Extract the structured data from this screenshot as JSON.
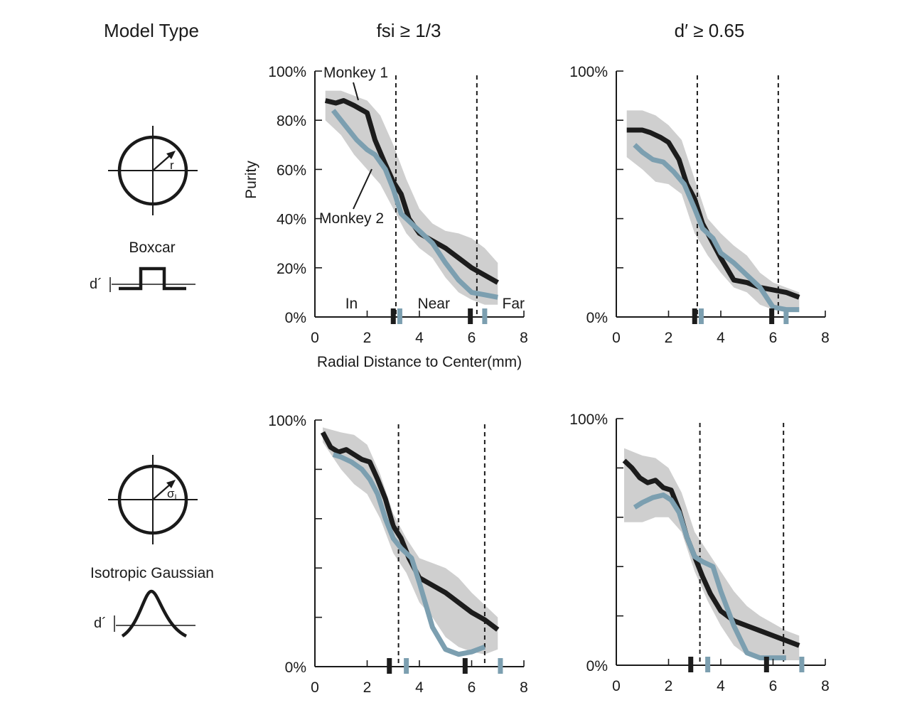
{
  "headers": {
    "model_type": "Model Type",
    "col1": "fsi ≥ 1/3",
    "col2": "d′ ≥ 0.65"
  },
  "models": {
    "boxcar": {
      "label": "Boxcar",
      "radius_symbol": "r",
      "dprime": "d´"
    },
    "gaussian": {
      "label": "Isotropic Gaussian",
      "radius_symbol": "σ",
      "radius_subscript": "I",
      "dprime": "d´"
    }
  },
  "colors": {
    "monkey1": "#1c1c1c",
    "monkey2": "#7c9fb0",
    "band": "#cfcfcf",
    "axis": "#1a1a1a"
  },
  "chart_data": [
    {
      "type": "line",
      "title": "",
      "ylabel": "Purity",
      "xlabel": "Radial Distance to Center(mm)",
      "xlim": [
        0,
        8
      ],
      "ylim": [
        0,
        100
      ],
      "xticks": [
        "0",
        "2",
        "4",
        "6",
        "8"
      ],
      "yticks": [
        "0%",
        "20%",
        "40%",
        "60%",
        "80%",
        "100%"
      ],
      "region_labels": [
        "In",
        "Near",
        "Far"
      ],
      "dashed_lines": [
        3.1,
        6.2
      ],
      "tick_marks": {
        "monkey1": [
          3.0,
          5.95
        ],
        "monkey2": [
          3.25,
          6.5
        ]
      },
      "series": [
        {
          "name": "Monkey 1",
          "x": [
            0.4,
            0.8,
            1.1,
            1.5,
            2.0,
            2.3,
            2.7,
            3.0,
            3.3,
            3.6,
            4.0,
            4.5,
            5.0,
            5.5,
            6.0,
            6.5,
            7.0
          ],
          "y": [
            88,
            87,
            88,
            86,
            83,
            72,
            62,
            55,
            50,
            40,
            34,
            31,
            28,
            24,
            20,
            17,
            14
          ]
        },
        {
          "name": "Monkey 2",
          "x": [
            0.7,
            1.0,
            1.3,
            1.6,
            2.0,
            2.3,
            2.7,
            3.0,
            3.3,
            3.6,
            4.0,
            4.5,
            5.0,
            5.5,
            6.0,
            6.5,
            7.0
          ],
          "y": [
            84,
            80,
            76,
            72,
            68,
            66,
            60,
            52,
            42,
            39,
            35,
            30,
            22,
            15,
            10,
            9,
            8
          ]
        }
      ],
      "band": {
        "x": [
          0.4,
          1.0,
          1.5,
          2.0,
          2.5,
          3.0,
          3.5,
          4.0,
          4.5,
          5.0,
          5.5,
          6.0,
          6.5,
          7.0
        ],
        "upper": [
          92,
          92,
          90,
          88,
          82,
          70,
          56,
          44,
          38,
          35,
          34,
          32,
          28,
          22
        ],
        "lower": [
          80,
          74,
          66,
          60,
          54,
          44,
          34,
          28,
          24,
          16,
          10,
          7,
          5,
          5
        ]
      },
      "annotations": [
        {
          "text": "Monkey 1",
          "series": "Monkey 1"
        },
        {
          "text": "Monkey 2",
          "series": "Monkey 2"
        }
      ]
    },
    {
      "type": "line",
      "title": "",
      "xlim": [
        0,
        8
      ],
      "ylim": [
        0,
        100
      ],
      "xticks": [
        "0",
        "2",
        "4",
        "6",
        "8"
      ],
      "yticks": [
        "0%",
        "100%"
      ],
      "dashed_lines": [
        3.1,
        6.2
      ],
      "tick_marks": {
        "monkey1": [
          3.0,
          5.95
        ],
        "monkey2": [
          3.25,
          6.5
        ]
      },
      "series": [
        {
          "name": "Monkey 1",
          "x": [
            0.4,
            0.8,
            1.0,
            1.3,
            1.7,
            2.0,
            2.4,
            2.7,
            3.0,
            3.3,
            3.7,
            4.0,
            4.5,
            5.0,
            5.5,
            6.0,
            6.5,
            7.0
          ],
          "y": [
            76,
            76,
            76,
            75,
            73,
            71,
            64,
            54,
            48,
            38,
            30,
            24,
            15,
            14,
            12,
            11,
            10,
            8
          ]
        },
        {
          "name": "Monkey 2",
          "x": [
            0.7,
            1.0,
            1.4,
            1.8,
            2.2,
            2.6,
            3.0,
            3.3,
            3.7,
            4.0,
            4.5,
            5.0,
            5.5,
            6.0,
            6.5,
            7.0
          ],
          "y": [
            70,
            67,
            64,
            63,
            59,
            54,
            44,
            36,
            32,
            26,
            22,
            17,
            12,
            4,
            3,
            3
          ]
        }
      ],
      "band": {
        "x": [
          0.4,
          1.0,
          1.5,
          2.0,
          2.5,
          3.0,
          3.5,
          4.0,
          4.5,
          5.0,
          5.5,
          6.0,
          6.5,
          7.0
        ],
        "upper": [
          84,
          84,
          82,
          78,
          72,
          56,
          40,
          34,
          29,
          25,
          18,
          14,
          12,
          10
        ],
        "lower": [
          65,
          60,
          55,
          54,
          50,
          34,
          25,
          18,
          12,
          10,
          5,
          3,
          2,
          2
        ]
      }
    },
    {
      "type": "line",
      "title": "",
      "xlim": [
        0,
        8
      ],
      "ylim": [
        0,
        100
      ],
      "xticks": [
        "0",
        "2",
        "4",
        "6",
        "8"
      ],
      "yticks": [
        "0%",
        "100%"
      ],
      "dashed_lines": [
        3.2,
        6.5
      ],
      "tick_marks": {
        "monkey1": [
          2.85,
          5.75
        ],
        "monkey2": [
          3.5,
          7.1
        ]
      },
      "series": [
        {
          "name": "Monkey 1",
          "x": [
            0.3,
            0.6,
            0.9,
            1.2,
            1.5,
            1.8,
            2.1,
            2.4,
            2.7,
            3.0,
            3.3,
            3.6,
            4.0,
            4.5,
            5.0,
            5.5,
            6.0,
            6.5,
            7.0
          ],
          "y": [
            95,
            89,
            87,
            88,
            86,
            84,
            83,
            76,
            68,
            57,
            52,
            44,
            36,
            33,
            30,
            26,
            22,
            19,
            15
          ]
        },
        {
          "name": "Monkey 2",
          "x": [
            0.7,
            1.0,
            1.4,
            1.8,
            2.1,
            2.4,
            2.7,
            3.0,
            3.3,
            3.7,
            4.0,
            4.5,
            5.0,
            5.5,
            6.0,
            6.5
          ],
          "y": [
            86,
            85,
            83,
            80,
            76,
            70,
            60,
            52,
            48,
            44,
            34,
            16,
            7,
            5,
            6,
            8
          ]
        }
      ],
      "band": {
        "x": [
          0.3,
          1.0,
          1.5,
          2.0,
          2.5,
          3.0,
          3.5,
          4.0,
          4.5,
          5.0,
          5.5,
          6.0,
          6.5,
          7.0
        ],
        "upper": [
          97,
          95,
          94,
          90,
          78,
          62,
          52,
          44,
          42,
          40,
          36,
          30,
          25,
          20
        ],
        "lower": [
          91,
          80,
          74,
          70,
          60,
          46,
          38,
          26,
          20,
          12,
          8,
          6,
          5,
          7
        ]
      }
    },
    {
      "type": "line",
      "title": "",
      "xlim": [
        0,
        8
      ],
      "ylim": [
        0,
        100
      ],
      "xticks": [
        "0",
        "2",
        "4",
        "6",
        "8"
      ],
      "yticks": [
        "0%",
        "100%"
      ],
      "dashed_lines": [
        3.2,
        6.4
      ],
      "tick_marks": {
        "monkey1": [
          2.85,
          5.75
        ],
        "monkey2": [
          3.5,
          7.1
        ]
      },
      "series": [
        {
          "name": "Monkey 1",
          "x": [
            0.3,
            0.6,
            0.9,
            1.2,
            1.5,
            1.8,
            2.1,
            2.4,
            2.7,
            3.0,
            3.3,
            3.6,
            4.0,
            4.5,
            5.0,
            5.5,
            6.0,
            6.5,
            7.0
          ],
          "y": [
            83,
            80,
            76,
            74,
            75,
            72,
            71,
            63,
            52,
            44,
            36,
            29,
            22,
            18,
            16,
            14,
            12,
            10,
            8
          ]
        },
        {
          "name": "Monkey 2",
          "x": [
            0.7,
            1.0,
            1.4,
            1.8,
            2.1,
            2.4,
            2.7,
            3.0,
            3.3,
            3.7,
            4.0,
            4.5,
            5.0,
            5.5,
            6.0,
            6.5
          ],
          "y": [
            64,
            66,
            68,
            69,
            67,
            62,
            52,
            44,
            42,
            40,
            30,
            16,
            5,
            3,
            3,
            3
          ]
        }
      ],
      "band": {
        "x": [
          0.3,
          1.0,
          1.5,
          2.0,
          2.5,
          3.0,
          3.5,
          4.0,
          4.5,
          5.0,
          5.5,
          6.0,
          6.5,
          7.0
        ],
        "upper": [
          88,
          85,
          84,
          80,
          70,
          54,
          46,
          38,
          30,
          24,
          20,
          17,
          14,
          12
        ],
        "lower": [
          58,
          58,
          60,
          60,
          54,
          38,
          26,
          16,
          8,
          4,
          2,
          2,
          2,
          2
        ]
      }
    }
  ]
}
